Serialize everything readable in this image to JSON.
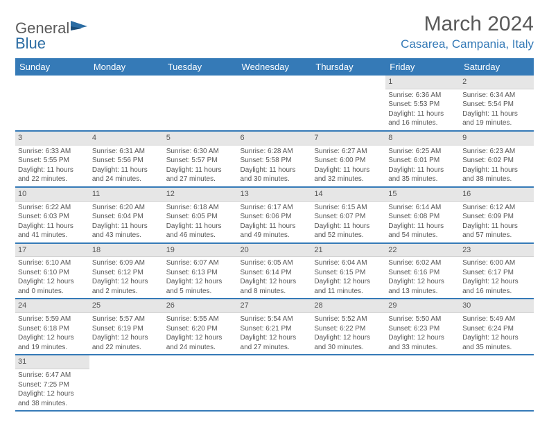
{
  "brand": {
    "part1": "General",
    "part2": "Blue"
  },
  "title": "March 2024",
  "location": "Casarea, Campania, Italy",
  "colors": {
    "accent": "#357ab7",
    "header_text": "#5a5a5a",
    "cell_header": "#e6e6e6"
  },
  "weekdays": [
    "Sunday",
    "Monday",
    "Tuesday",
    "Wednesday",
    "Thursday",
    "Friday",
    "Saturday"
  ],
  "weeks": [
    [
      null,
      null,
      null,
      null,
      null,
      {
        "n": "1",
        "sr": "Sunrise: 6:36 AM",
        "ss": "Sunset: 5:53 PM",
        "dl": "Daylight: 11 hours and 16 minutes."
      },
      {
        "n": "2",
        "sr": "Sunrise: 6:34 AM",
        "ss": "Sunset: 5:54 PM",
        "dl": "Daylight: 11 hours and 19 minutes."
      }
    ],
    [
      {
        "n": "3",
        "sr": "Sunrise: 6:33 AM",
        "ss": "Sunset: 5:55 PM",
        "dl": "Daylight: 11 hours and 22 minutes."
      },
      {
        "n": "4",
        "sr": "Sunrise: 6:31 AM",
        "ss": "Sunset: 5:56 PM",
        "dl": "Daylight: 11 hours and 24 minutes."
      },
      {
        "n": "5",
        "sr": "Sunrise: 6:30 AM",
        "ss": "Sunset: 5:57 PM",
        "dl": "Daylight: 11 hours and 27 minutes."
      },
      {
        "n": "6",
        "sr": "Sunrise: 6:28 AM",
        "ss": "Sunset: 5:58 PM",
        "dl": "Daylight: 11 hours and 30 minutes."
      },
      {
        "n": "7",
        "sr": "Sunrise: 6:27 AM",
        "ss": "Sunset: 6:00 PM",
        "dl": "Daylight: 11 hours and 32 minutes."
      },
      {
        "n": "8",
        "sr": "Sunrise: 6:25 AM",
        "ss": "Sunset: 6:01 PM",
        "dl": "Daylight: 11 hours and 35 minutes."
      },
      {
        "n": "9",
        "sr": "Sunrise: 6:23 AM",
        "ss": "Sunset: 6:02 PM",
        "dl": "Daylight: 11 hours and 38 minutes."
      }
    ],
    [
      {
        "n": "10",
        "sr": "Sunrise: 6:22 AM",
        "ss": "Sunset: 6:03 PM",
        "dl": "Daylight: 11 hours and 41 minutes."
      },
      {
        "n": "11",
        "sr": "Sunrise: 6:20 AM",
        "ss": "Sunset: 6:04 PM",
        "dl": "Daylight: 11 hours and 43 minutes."
      },
      {
        "n": "12",
        "sr": "Sunrise: 6:18 AM",
        "ss": "Sunset: 6:05 PM",
        "dl": "Daylight: 11 hours and 46 minutes."
      },
      {
        "n": "13",
        "sr": "Sunrise: 6:17 AM",
        "ss": "Sunset: 6:06 PM",
        "dl": "Daylight: 11 hours and 49 minutes."
      },
      {
        "n": "14",
        "sr": "Sunrise: 6:15 AM",
        "ss": "Sunset: 6:07 PM",
        "dl": "Daylight: 11 hours and 52 minutes."
      },
      {
        "n": "15",
        "sr": "Sunrise: 6:14 AM",
        "ss": "Sunset: 6:08 PM",
        "dl": "Daylight: 11 hours and 54 minutes."
      },
      {
        "n": "16",
        "sr": "Sunrise: 6:12 AM",
        "ss": "Sunset: 6:09 PM",
        "dl": "Daylight: 11 hours and 57 minutes."
      }
    ],
    [
      {
        "n": "17",
        "sr": "Sunrise: 6:10 AM",
        "ss": "Sunset: 6:10 PM",
        "dl": "Daylight: 12 hours and 0 minutes."
      },
      {
        "n": "18",
        "sr": "Sunrise: 6:09 AM",
        "ss": "Sunset: 6:12 PM",
        "dl": "Daylight: 12 hours and 2 minutes."
      },
      {
        "n": "19",
        "sr": "Sunrise: 6:07 AM",
        "ss": "Sunset: 6:13 PM",
        "dl": "Daylight: 12 hours and 5 minutes."
      },
      {
        "n": "20",
        "sr": "Sunrise: 6:05 AM",
        "ss": "Sunset: 6:14 PM",
        "dl": "Daylight: 12 hours and 8 minutes."
      },
      {
        "n": "21",
        "sr": "Sunrise: 6:04 AM",
        "ss": "Sunset: 6:15 PM",
        "dl": "Daylight: 12 hours and 11 minutes."
      },
      {
        "n": "22",
        "sr": "Sunrise: 6:02 AM",
        "ss": "Sunset: 6:16 PM",
        "dl": "Daylight: 12 hours and 13 minutes."
      },
      {
        "n": "23",
        "sr": "Sunrise: 6:00 AM",
        "ss": "Sunset: 6:17 PM",
        "dl": "Daylight: 12 hours and 16 minutes."
      }
    ],
    [
      {
        "n": "24",
        "sr": "Sunrise: 5:59 AM",
        "ss": "Sunset: 6:18 PM",
        "dl": "Daylight: 12 hours and 19 minutes."
      },
      {
        "n": "25",
        "sr": "Sunrise: 5:57 AM",
        "ss": "Sunset: 6:19 PM",
        "dl": "Daylight: 12 hours and 22 minutes."
      },
      {
        "n": "26",
        "sr": "Sunrise: 5:55 AM",
        "ss": "Sunset: 6:20 PM",
        "dl": "Daylight: 12 hours and 24 minutes."
      },
      {
        "n": "27",
        "sr": "Sunrise: 5:54 AM",
        "ss": "Sunset: 6:21 PM",
        "dl": "Daylight: 12 hours and 27 minutes."
      },
      {
        "n": "28",
        "sr": "Sunrise: 5:52 AM",
        "ss": "Sunset: 6:22 PM",
        "dl": "Daylight: 12 hours and 30 minutes."
      },
      {
        "n": "29",
        "sr": "Sunrise: 5:50 AM",
        "ss": "Sunset: 6:23 PM",
        "dl": "Daylight: 12 hours and 33 minutes."
      },
      {
        "n": "30",
        "sr": "Sunrise: 5:49 AM",
        "ss": "Sunset: 6:24 PM",
        "dl": "Daylight: 12 hours and 35 minutes."
      }
    ],
    [
      {
        "n": "31",
        "sr": "Sunrise: 6:47 AM",
        "ss": "Sunset: 7:25 PM",
        "dl": "Daylight: 12 hours and 38 minutes."
      },
      null,
      null,
      null,
      null,
      null,
      null
    ]
  ]
}
